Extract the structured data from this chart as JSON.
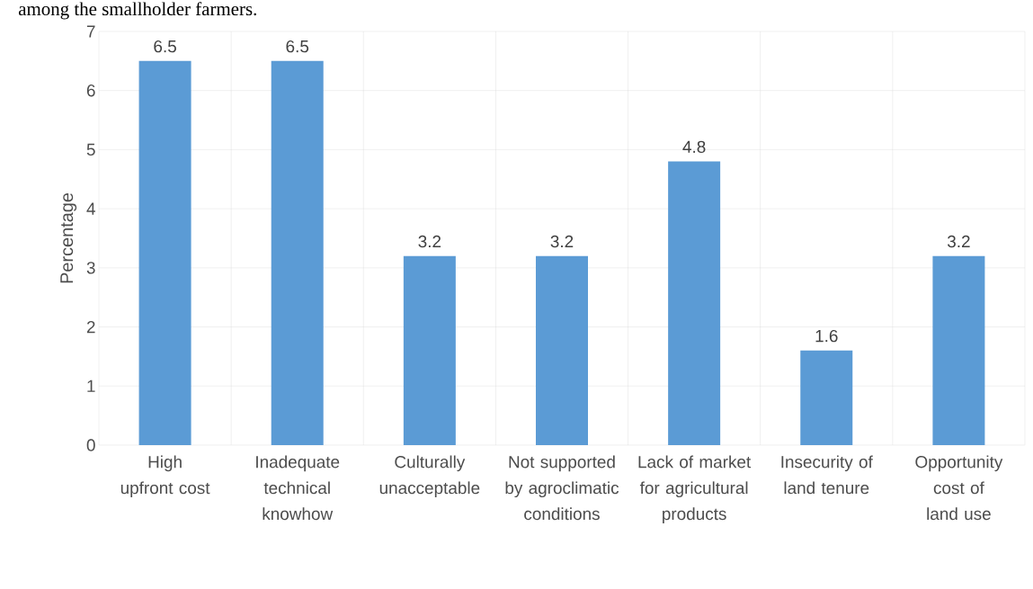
{
  "chart_data": {
    "type": "bar",
    "annotations": [
      "among the smallholder farmers."
    ],
    "ylabel": "Percentage",
    "categories": [
      "High upfront cost",
      "Inadequate technical knowhow",
      "Culturally unacceptable",
      "Not supported by agroclimatic conditions",
      "Lack of market for agricultural products",
      "Insecurity of land tenure",
      "Opportunity cost of land use"
    ],
    "values": [
      6.5,
      6.5,
      3.2,
      3.2,
      4.8,
      1.6,
      3.2
    ],
    "color": "#5b9bd5",
    "ylim": [
      0,
      7
    ],
    "yticks": [
      0,
      1,
      2,
      3,
      4,
      5,
      6,
      7
    ],
    "grid": true,
    "data_labels": true
  }
}
